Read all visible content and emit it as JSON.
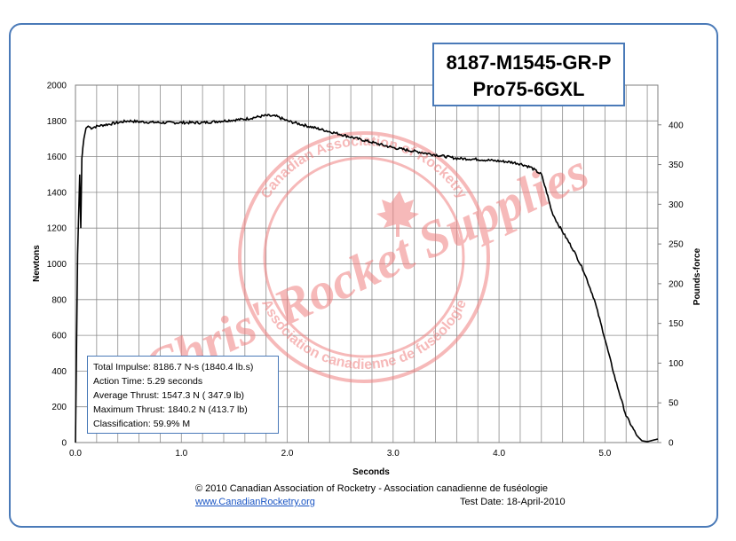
{
  "chart_data": {
    "type": "line",
    "title_lines": [
      "8187-M1545-GR-P",
      "Pro75-6GXL"
    ],
    "xlabel": "Seconds",
    "ylabel": "Newtons",
    "y2label": "Pounds-force",
    "xlim": [
      0,
      5.5
    ],
    "ylim": [
      0,
      2000
    ],
    "y2lim": [
      0,
      450
    ],
    "x_ticks": [
      "0.0",
      "1.0",
      "2.0",
      "3.0",
      "4.0",
      "5.0"
    ],
    "y_ticks": [
      "0",
      "200",
      "400",
      "600",
      "800",
      "1000",
      "1200",
      "1400",
      "1600",
      "1800",
      "2000"
    ],
    "y2_ticks": [
      "0",
      "50",
      "100",
      "150",
      "200",
      "250",
      "300",
      "350",
      "400"
    ],
    "grid": true,
    "line_color": "#000000",
    "x": [
      0.0,
      0.02,
      0.04,
      0.05,
      0.06,
      0.07,
      0.08,
      0.1,
      0.12,
      0.15,
      0.2,
      0.3,
      0.4,
      0.5,
      0.6,
      0.8,
      1.0,
      1.2,
      1.4,
      1.6,
      1.8,
      1.9,
      2.0,
      2.2,
      2.4,
      2.6,
      2.8,
      3.0,
      3.2,
      3.4,
      3.5,
      3.6,
      3.8,
      4.0,
      4.1,
      4.2,
      4.3,
      4.4,
      4.45,
      4.5,
      4.55,
      4.6,
      4.7,
      4.8,
      4.9,
      5.0,
      5.1,
      5.2,
      5.3,
      5.35,
      5.4,
      5.5
    ],
    "y": [
      0,
      1050,
      1500,
      1200,
      1590,
      1650,
      1700,
      1760,
      1770,
      1760,
      1770,
      1780,
      1790,
      1800,
      1795,
      1790,
      1790,
      1790,
      1800,
      1810,
      1830,
      1825,
      1800,
      1770,
      1740,
      1710,
      1680,
      1650,
      1630,
      1610,
      1600,
      1590,
      1585,
      1575,
      1570,
      1560,
      1540,
      1500,
      1400,
      1290,
      1230,
      1180,
      1080,
      960,
      800,
      580,
      350,
      150,
      40,
      10,
      5,
      20
    ]
  },
  "stats": {
    "total_impulse": "Total Impulse: 8186.7 N-s (1840.4 lb.s)",
    "action_time": "Action Time: 5.29 seconds",
    "average_thrust": "Average Thrust: 1547.3 N ( 347.9 lb)",
    "maximum_thrust": "Maximum Thrust: 1840.2 N (413.7 lb)",
    "classification": "Classification: 59.9% M"
  },
  "footer": {
    "copyright": "© 2010 Canadian Association of Rocketry - Association canadienne de fuséologie",
    "link": "www.CanadianRocketry.org",
    "test_date": "Test  Date: 18-April-2010"
  },
  "watermark": {
    "text": "Chris' Rocket Supplies",
    "seal_top": "Canadian Association of Rocketry",
    "seal_bottom": "Association canadienne de fuséologie",
    "color": "#f08080"
  }
}
